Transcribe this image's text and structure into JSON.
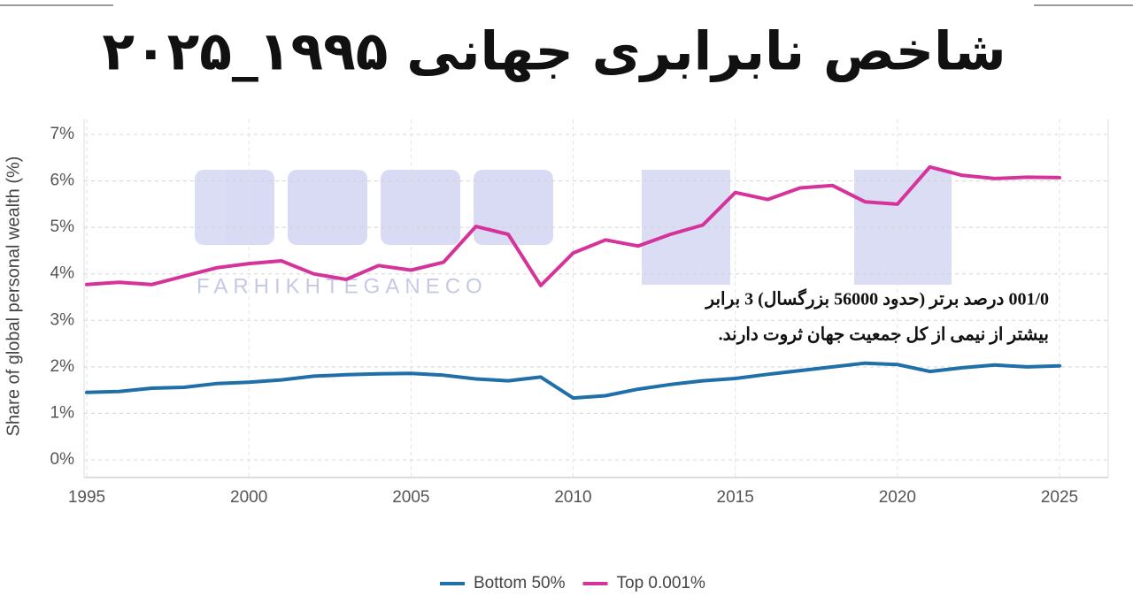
{
  "chart_data": {
    "type": "line",
    "title": "شاخص نابرابری جهانی ۱۹۹۵_۲۰۲۵",
    "y_label": "Share of global personal wealth (%)",
    "annotation": [
      "001/0 درصد برتر (حدود 56000 بزرگسال) 3 برابر",
      "بیشتر از نیمی از کل جمعیت جهان ثروت دارند."
    ],
    "watermark": "FARHIKHTEGANECO",
    "x": [
      1995,
      1996,
      1997,
      1998,
      1999,
      2000,
      2001,
      2002,
      2003,
      2004,
      2005,
      2006,
      2007,
      2008,
      2009,
      2010,
      2011,
      2012,
      2013,
      2014,
      2015,
      2016,
      2017,
      2018,
      2019,
      2020,
      2021,
      2022,
      2023,
      2024,
      2025
    ],
    "series": [
      {
        "name": "Bottom 50%",
        "color": "#1f6fa8",
        "values": [
          1.45,
          1.47,
          1.54,
          1.56,
          1.64,
          1.67,
          1.72,
          1.8,
          1.83,
          1.85,
          1.86,
          1.82,
          1.74,
          1.7,
          1.78,
          1.33,
          1.38,
          1.52,
          1.62,
          1.7,
          1.75,
          1.84,
          1.92,
          2.0,
          2.08,
          2.05,
          1.9,
          1.98,
          2.04,
          2.0,
          2.02
        ]
      },
      {
        "name": "Top 0.001%",
        "color": "#d6339a",
        "values": [
          3.77,
          3.82,
          3.77,
          3.95,
          4.13,
          4.22,
          4.28,
          4.0,
          3.88,
          4.18,
          4.08,
          4.25,
          5.02,
          4.85,
          3.75,
          4.45,
          4.73,
          4.6,
          4.85,
          5.05,
          5.75,
          5.6,
          5.85,
          5.9,
          5.55,
          5.5,
          6.3,
          6.12,
          6.05,
          6.08,
          6.07
        ]
      }
    ],
    "xlim": [
      1995,
      2025
    ],
    "xticks": [
      1995,
      2000,
      2005,
      2010,
      2015,
      2020,
      2025
    ],
    "ylim": [
      0,
      7
    ],
    "yticks": [
      {
        "value": 0,
        "label": "0%"
      },
      {
        "value": 1,
        "label": "1%"
      },
      {
        "value": 2,
        "label": "2%"
      },
      {
        "value": 3,
        "label": "3%"
      },
      {
        "value": 4,
        "label": "4%"
      },
      {
        "value": 5,
        "label": "5%"
      },
      {
        "value": 6,
        "label": "6%"
      },
      {
        "value": 7,
        "label": "7%"
      }
    ],
    "grid": true,
    "legend": "bottom"
  }
}
